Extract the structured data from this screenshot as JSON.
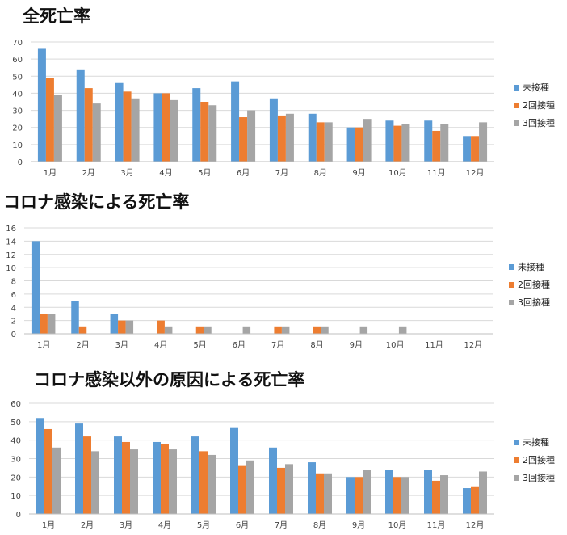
{
  "colors": {
    "unvaccinated": "#5b9bd5",
    "two_doses": "#ed7d31",
    "three_doses": "#a5a5a5",
    "grid": "#d9d9d9"
  },
  "chart_data": [
    {
      "type": "bar",
      "title": "全死亡率",
      "categories": [
        "1月",
        "2月",
        "3月",
        "4月",
        "5月",
        "6月",
        "7月",
        "8月",
        "9月",
        "10月",
        "11月",
        "12月"
      ],
      "ylim": [
        0,
        70
      ],
      "yticks": [
        0,
        10,
        20,
        30,
        40,
        50,
        60,
        70
      ],
      "grid": true,
      "legend_position": "right",
      "series": [
        {
          "name": "未接種",
          "values": [
            66,
            54,
            46,
            40,
            43,
            47,
            37,
            28,
            20,
            24,
            24,
            15
          ]
        },
        {
          "name": "2回接種",
          "values": [
            49,
            43,
            41,
            40,
            35,
            26,
            27,
            23,
            20,
            21,
            18,
            15
          ]
        },
        {
          "name": "3回接種",
          "values": [
            39,
            34,
            37,
            36,
            33,
            30,
            28,
            23,
            25,
            22,
            22,
            23
          ]
        }
      ]
    },
    {
      "type": "bar",
      "title": "コロナ感染による死亡率",
      "categories": [
        "1月",
        "2月",
        "3月",
        "4月",
        "5月",
        "6月",
        "7月",
        "8月",
        "9月",
        "10月",
        "11月",
        "12月"
      ],
      "ylim": [
        0,
        16
      ],
      "yticks": [
        0,
        2,
        4,
        6,
        8,
        10,
        12,
        14,
        16
      ],
      "grid": true,
      "legend_position": "right",
      "series": [
        {
          "name": "未接種",
          "values": [
            14,
            5,
            3,
            0,
            0,
            0,
            0,
            0,
            0,
            0,
            0,
            0
          ]
        },
        {
          "name": "2回接種",
          "values": [
            3,
            1,
            2,
            2,
            1,
            0,
            1,
            1,
            0,
            0,
            0,
            0
          ]
        },
        {
          "name": "3回接種",
          "values": [
            3,
            0,
            2,
            1,
            1,
            1,
            1,
            1,
            1,
            1,
            0,
            0
          ]
        }
      ]
    },
    {
      "type": "bar",
      "title": "コロナ感染以外の原因による死亡率",
      "categories": [
        "1月",
        "2月",
        "3月",
        "4月",
        "5月",
        "6月",
        "7月",
        "8月",
        "9月",
        "10月",
        "11月",
        "12月"
      ],
      "ylim": [
        0,
        60
      ],
      "yticks": [
        0,
        10,
        20,
        30,
        40,
        50,
        60
      ],
      "grid": true,
      "legend_position": "right",
      "series": [
        {
          "name": "未接種",
          "values": [
            52,
            49,
            42,
            39,
            42,
            47,
            36,
            28,
            20,
            24,
            24,
            14
          ]
        },
        {
          "name": "2回接種",
          "values": [
            46,
            42,
            39,
            38,
            34,
            26,
            25,
            22,
            20,
            20,
            18,
            15
          ]
        },
        {
          "name": "3回接種",
          "values": [
            36,
            34,
            35,
            35,
            32,
            29,
            27,
            22,
            24,
            20,
            21,
            23
          ]
        }
      ]
    }
  ]
}
